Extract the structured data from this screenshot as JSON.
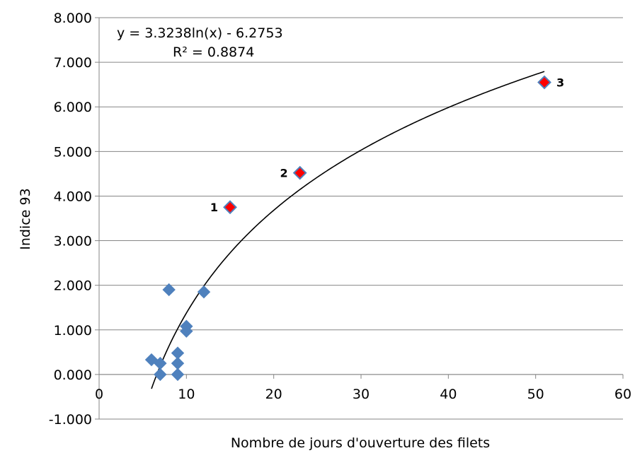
{
  "chart_data": {
    "type": "scatter",
    "title": "",
    "xlabel": "Nombre de jours d'ouverture des filets",
    "ylabel": "Indice 93",
    "xlim": [
      0,
      60
    ],
    "ylim": [
      -1,
      8
    ],
    "x_ticks": [
      "0",
      "10",
      "20",
      "30",
      "40",
      "50",
      "60"
    ],
    "y_ticks": [
      "-1.000",
      "0.000",
      "1.000",
      "2.000",
      "3.000",
      "4.000",
      "5.000",
      "6.000",
      "7.000",
      "8.000"
    ],
    "grid": "horizontal",
    "colors": {
      "base": "#4f81bd",
      "highlight": "#ff0000",
      "highlight_border": "#4f81bd",
      "trend": "#000000"
    },
    "series": [
      {
        "points": [
          {
            "x": 6,
            "y": 0.33
          },
          {
            "x": 7,
            "y": 0.0
          },
          {
            "x": 7,
            "y": 0.25
          },
          {
            "x": 8,
            "y": 1.9
          },
          {
            "x": 9,
            "y": 0.0
          },
          {
            "x": 9,
            "y": 0.25
          },
          {
            "x": 9,
            "y": 0.48
          },
          {
            "x": 10,
            "y": 0.97
          },
          {
            "x": 10,
            "y": 1.08
          },
          {
            "x": 12,
            "y": 1.85
          }
        ]
      },
      {
        "highlighted": true,
        "points": [
          {
            "x": 15,
            "y": 3.75,
            "label": "1"
          },
          {
            "x": 23,
            "y": 4.52,
            "label": "2"
          },
          {
            "x": 51,
            "y": 6.55,
            "label": "3"
          }
        ]
      }
    ],
    "trendline": {
      "type": "logarithmic",
      "a": 3.3238,
      "b": -6.2753,
      "x_range": [
        6,
        51
      ],
      "equation": "y = 3.3238ln(x) - 6.2753",
      "r_squared": "R² = 0.8874"
    }
  }
}
